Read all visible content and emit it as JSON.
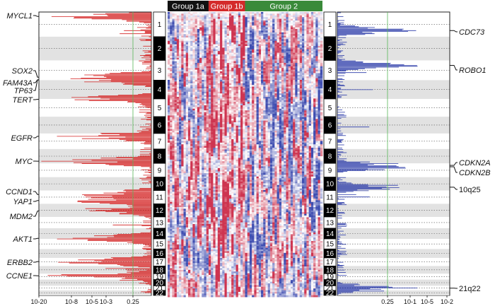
{
  "groups": [
    {
      "label": "Group 1a",
      "color": "#111111",
      "samples": 18
    },
    {
      "label": "Group 1b",
      "color": "#d42a2a",
      "samples": 16
    },
    {
      "label": "Group 2",
      "color": "#3a8a3a",
      "samples": 34
    }
  ],
  "chromosomes": [
    "1",
    "2",
    "3",
    "4",
    "5",
    "6",
    "7",
    "8",
    "9",
    "10",
    "11",
    "12",
    "13",
    "14",
    "15",
    "16",
    "17",
    "18",
    "19",
    "20",
    "21",
    "22"
  ],
  "chrom_relative_sizes": [
    1.0,
    0.96,
    0.8,
    0.76,
    0.72,
    0.68,
    0.63,
    0.58,
    0.56,
    0.54,
    0.54,
    0.53,
    0.46,
    0.43,
    0.41,
    0.36,
    0.33,
    0.31,
    0.24,
    0.25,
    0.19,
    0.2
  ],
  "left_panel": {
    "color": "#d42020",
    "threshold_color": "#58b858",
    "threshold_value": 0.25,
    "tick_labels": [
      "10-20",
      "10-8",
      "10-5",
      "10-3",
      "0.25"
    ],
    "gene_labels": [
      {
        "label": "MYCL1",
        "chrom": 1,
        "pos": 0.18
      },
      {
        "label": "SOX2",
        "chrom": 3,
        "pos": 0.85
      },
      {
        "label": "FAM43A",
        "chrom": 3,
        "pos": 0.98
      },
      {
        "label": "TP63",
        "chrom": 3,
        "pos": 0.99
      },
      {
        "label": "TERT",
        "chrom": 5,
        "pos": 0.02
      },
      {
        "label": "EGFR",
        "chrom": 7,
        "pos": 0.18
      },
      {
        "label": "MYC",
        "chrom": 8,
        "pos": 0.85
      },
      {
        "label": "CCND1",
        "chrom": 11,
        "pos": 0.3
      },
      {
        "label": "YAP1",
        "chrom": 11,
        "pos": 0.75
      },
      {
        "label": "MDM2",
        "chrom": 12,
        "pos": 0.55
      },
      {
        "label": "AKT1",
        "chrom": 14,
        "pos": 0.95
      },
      {
        "label": "ERBB2",
        "chrom": 17,
        "pos": 0.45
      },
      {
        "label": "CCNE1",
        "chrom": 19,
        "pos": 0.35
      }
    ]
  },
  "right_panel": {
    "color": "#2a3aa8",
    "threshold_color": "#58b858",
    "threshold_value": 0.25,
    "tick_labels": [
      "0.25",
      "10-1",
      "10-5",
      "10-2"
    ],
    "gene_labels": [
      {
        "label": "CDC73",
        "chrom": 1,
        "pos": 0.75,
        "italic": true
      },
      {
        "label": "ROBO1",
        "chrom": 3,
        "pos": 0.25,
        "italic": true
      },
      {
        "label": "CDKN2A",
        "chrom": 9,
        "pos": 0.15,
        "italic": true
      },
      {
        "label": "CDKN2B",
        "chrom": 9,
        "pos": 0.25,
        "italic": true
      },
      {
        "label": "10q25",
        "chrom": 10,
        "pos": 0.75,
        "italic": false
      },
      {
        "label": "21q22",
        "chrom": 21,
        "pos": 0.5,
        "italic": false
      }
    ]
  },
  "heatmap_colors": {
    "gain": "#c81e3c",
    "loss": "#2a3aa8",
    "neutral": "#ffffff"
  }
}
